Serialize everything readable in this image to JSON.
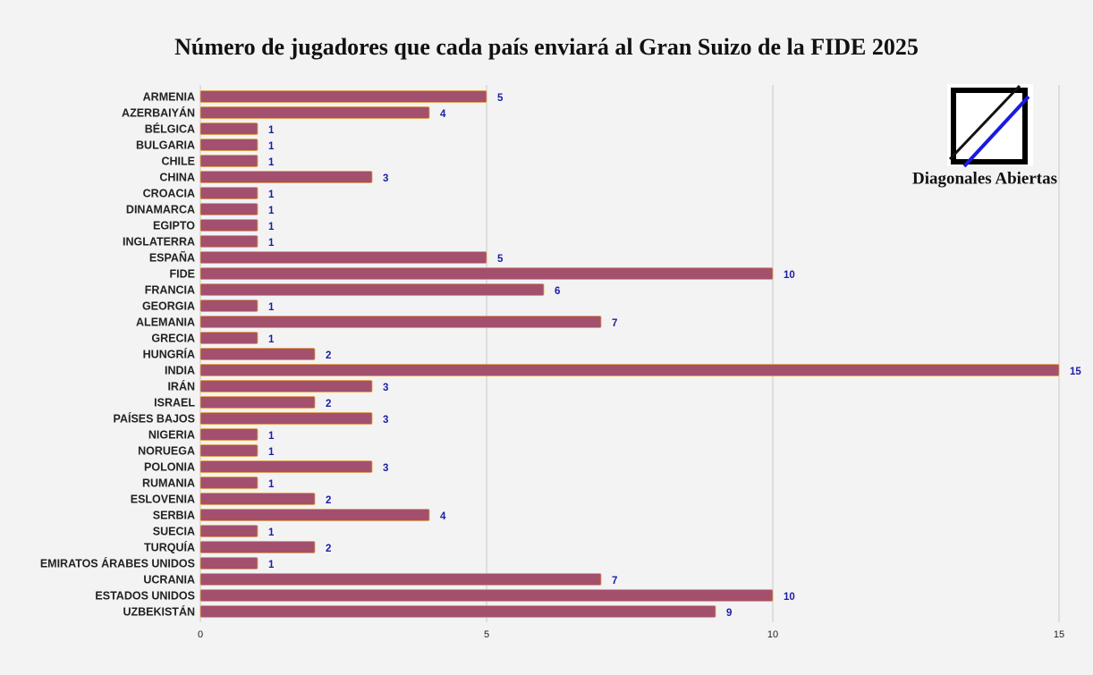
{
  "chart_data": {
    "type": "bar",
    "orientation": "horizontal",
    "title": "Número de jugadores que cada país enviará al Gran Suizo de la FIDE 2025",
    "logo_text": "Diagonales Abiertas",
    "categories": [
      "ARMENIA",
      "AZERBAIYÁN",
      "BÉLGICA",
      "BULGARIA",
      "CHILE",
      "CHINA",
      "CROACIA",
      "DINAMARCA",
      "EGIPTO",
      "INGLATERRA",
      "ESPAÑA",
      "FIDE",
      "FRANCIA",
      "GEORGIA",
      "ALEMANIA",
      "GRECIA",
      "HUNGRÍA",
      "INDIA",
      "IRÁN",
      "ISRAEL",
      "PAÍSES BAJOS",
      "NIGERIA",
      "NORUEGA",
      "POLONIA",
      "RUMANIA",
      "ESLOVENIA",
      "SERBIA",
      "SUECIA",
      "TURQUÍA",
      "EMIRATOS ÁRABES UNIDOS",
      "UCRANIA",
      "ESTADOS UNIDOS",
      "UZBEKISTÁN"
    ],
    "values": [
      5,
      4,
      1,
      1,
      1,
      3,
      1,
      1,
      1,
      1,
      5,
      10,
      6,
      1,
      7,
      1,
      2,
      15,
      3,
      2,
      3,
      1,
      1,
      3,
      1,
      2,
      4,
      1,
      2,
      1,
      7,
      10,
      9
    ],
    "color": "#a3506f",
    "label_color": "#1c1ca8",
    "xlim": [
      0,
      15
    ],
    "xticks": [
      0,
      5,
      10,
      15
    ],
    "grid": true
  }
}
